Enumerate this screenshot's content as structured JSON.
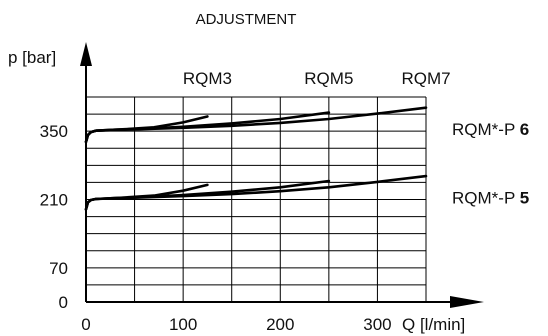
{
  "chart_data": {
    "type": "line",
    "title": "ADJUSTMENT",
    "ylabel": "p [bar]",
    "xlabel": "Q [l/min]",
    "xlim": [
      0,
      350
    ],
    "ylim": [
      0,
      420
    ],
    "x_ticks": [
      "0",
      "100",
      "200",
      "300"
    ],
    "y_ticks": [
      {
        "value": 0,
        "label": "0"
      },
      {
        "value": 70,
        "label": "70"
      },
      {
        "value": 210,
        "label": "210"
      },
      {
        "value": 350,
        "label": "350"
      }
    ],
    "grid": true,
    "model_labels": [
      {
        "text": "RQM3",
        "x": 125
      },
      {
        "text": "RQM5",
        "x": 250
      },
      {
        "text": "RQM7",
        "x": 350
      }
    ],
    "curve_labels": [
      {
        "prefix": "RQM*-P ",
        "suffix": "6",
        "y": 350
      },
      {
        "prefix": "RQM*-P ",
        "suffix": "5",
        "y": 210
      }
    ],
    "series": [
      {
        "x": [
          0,
          2,
          5,
          10,
          20,
          40,
          70,
          100,
          125
        ],
        "y": [
          328,
          342,
          348,
          351,
          352,
          354,
          358,
          368,
          380
        ]
      },
      {
        "x": [
          0,
          2,
          5,
          10,
          30,
          60,
          100,
          150,
          200,
          250
        ],
        "y": [
          328,
          342,
          348,
          351,
          353,
          355,
          359,
          366,
          375,
          388
        ]
      },
      {
        "x": [
          0,
          2,
          5,
          10,
          40,
          100,
          150,
          200,
          250,
          300,
          350
        ],
        "y": [
          328,
          342,
          348,
          351,
          353,
          357,
          361,
          367,
          375,
          386,
          398
        ]
      },
      {
        "x": [
          0,
          2,
          5,
          10,
          20,
          40,
          70,
          100,
          125
        ],
        "y": [
          190,
          204,
          209,
          211,
          212,
          214,
          218,
          228,
          240
        ]
      },
      {
        "x": [
          0,
          2,
          5,
          10,
          30,
          60,
          100,
          150,
          200,
          250
        ],
        "y": [
          190,
          204,
          209,
          211,
          213,
          215,
          219,
          226,
          235,
          248
        ]
      },
      {
        "x": [
          0,
          2,
          5,
          10,
          40,
          100,
          150,
          200,
          250,
          300,
          350
        ],
        "y": [
          190,
          204,
          209,
          211,
          213,
          217,
          221,
          227,
          235,
          246,
          258
        ]
      }
    ]
  }
}
